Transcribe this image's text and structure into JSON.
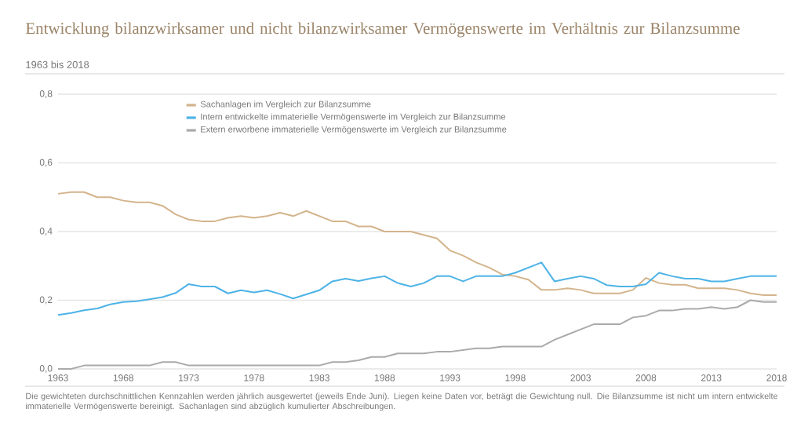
{
  "chart_data": {
    "type": "line",
    "title": "Entwicklung bilanzwirksamer und nicht bilanzwirksamer Vermögenswerte im Verhältnis zur Bilanzsumme",
    "subtitle": "1963 bis 2018",
    "x": [
      1963,
      1964,
      1965,
      1966,
      1967,
      1968,
      1969,
      1970,
      1971,
      1972,
      1973,
      1974,
      1975,
      1976,
      1977,
      1978,
      1979,
      1980,
      1981,
      1982,
      1983,
      1984,
      1985,
      1986,
      1987,
      1988,
      1989,
      1990,
      1991,
      1992,
      1993,
      1994,
      1995,
      1996,
      1997,
      1998,
      1999,
      2000,
      2001,
      2002,
      2003,
      2004,
      2005,
      2006,
      2007,
      2008,
      2009,
      2010,
      2011,
      2012,
      2013,
      2014,
      2015,
      2016,
      2017,
      2018
    ],
    "series": [
      {
        "name": "Sachanlagen im Vergleich zur Bilanzsumme",
        "color": "#d4b48c",
        "values": [
          0.51,
          0.515,
          0.515,
          0.5,
          0.5,
          0.49,
          0.485,
          0.485,
          0.475,
          0.45,
          0.435,
          0.43,
          0.43,
          0.44,
          0.445,
          0.44,
          0.445,
          0.455,
          0.445,
          0.46,
          0.445,
          0.43,
          0.43,
          0.415,
          0.415,
          0.4,
          0.4,
          0.4,
          0.39,
          0.38,
          0.345,
          0.33,
          0.31,
          0.295,
          0.275,
          0.27,
          0.26,
          0.23,
          0.23,
          0.235,
          0.23,
          0.22,
          0.22,
          0.22,
          0.23,
          0.265,
          0.25,
          0.245,
          0.245,
          0.235,
          0.235,
          0.235,
          0.23,
          0.22,
          0.215,
          0.215
        ]
      },
      {
        "name": "Intern entwickelte immaterielle Vermögenswerte im Vergleich zur Bilanzsumme",
        "color": "#4db3e6",
        "values": [
          0.157,
          0.163,
          0.171,
          0.176,
          0.188,
          0.195,
          0.197,
          0.203,
          0.209,
          0.221,
          0.247,
          0.24,
          0.24,
          0.22,
          0.229,
          0.223,
          0.229,
          0.218,
          0.205,
          0.217,
          0.229,
          0.255,
          0.263,
          0.256,
          0.264,
          0.27,
          0.25,
          0.24,
          0.25,
          0.27,
          0.27,
          0.255,
          0.27,
          0.27,
          0.27,
          0.28,
          0.295,
          0.31,
          0.255,
          0.263,
          0.27,
          0.263,
          0.244,
          0.24,
          0.24,
          0.247,
          0.28,
          0.27,
          0.263,
          0.263,
          0.255,
          0.255,
          0.263,
          0.27,
          0.27,
          0.27
        ]
      },
      {
        "name": "Extern erworbene immaterielle Vermögenswerte im Vergleich zur Bilanzsumme",
        "color": "#aaaaaa",
        "values": [
          0.0,
          0.0,
          0.01,
          0.01,
          0.01,
          0.01,
          0.01,
          0.01,
          0.02,
          0.02,
          0.01,
          0.01,
          0.01,
          0.01,
          0.01,
          0.01,
          0.01,
          0.01,
          0.01,
          0.01,
          0.01,
          0.02,
          0.02,
          0.025,
          0.035,
          0.035,
          0.045,
          0.045,
          0.045,
          0.05,
          0.05,
          0.055,
          0.06,
          0.06,
          0.065,
          0.065,
          0.065,
          0.065,
          0.085,
          0.1,
          0.115,
          0.13,
          0.13,
          0.13,
          0.15,
          0.155,
          0.17,
          0.17,
          0.175,
          0.175,
          0.18,
          0.175,
          0.18,
          0.2,
          0.195,
          0.195
        ]
      }
    ],
    "xlim": [
      1963,
      2018
    ],
    "xticks": [
      1963,
      1968,
      1973,
      1978,
      1983,
      1988,
      1993,
      1998,
      2003,
      2008,
      2013,
      2018
    ],
    "ylim": [
      0,
      0.8
    ],
    "yticks": [
      {
        "value": 0,
        "label": "0,0"
      },
      {
        "value": 0.2,
        "label": "0,2"
      },
      {
        "value": 0.4,
        "label": "0,4"
      },
      {
        "value": 0.6,
        "label": "0,6"
      },
      {
        "value": 0.8,
        "label": "0,8"
      }
    ],
    "grid": "y",
    "legend": "top left",
    "annotations": [
      "Die gewichteten durchschnittlichen Kennzahlen werden jährlich ausgewertet (jeweils Ende Juni). Liegen keine Daten vor, beträgt die Gewichtung null. Die Bilanzsumme ist nicht um intern entwickelte immaterielle Vermögenswerte bereinigt. Sachanlagen sind abzüglich kumulierter Abschreibungen."
    ]
  }
}
